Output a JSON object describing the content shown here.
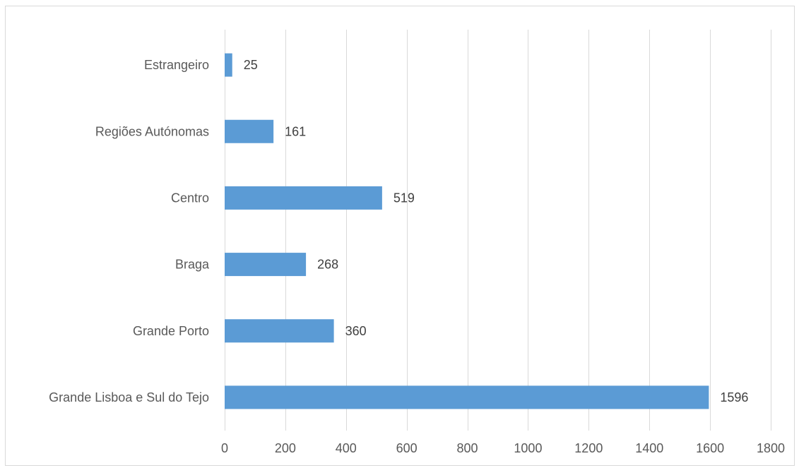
{
  "chart_data": {
    "type": "bar",
    "orientation": "horizontal",
    "title": "",
    "xlabel": "",
    "ylabel": "",
    "categories": [
      "Grande Lisboa e Sul do Tejo",
      "Grande Porto",
      "Braga",
      "Centro",
      "Regiões Autónomas",
      "Estrangeiro"
    ],
    "values": [
      1596,
      360,
      268,
      519,
      161,
      25
    ],
    "data_labels": [
      "1596",
      "360",
      "268",
      "519",
      "161",
      "25"
    ],
    "xlim": [
      0,
      1800
    ],
    "x_ticks": [
      "0",
      "200",
      "400",
      "600",
      "800",
      "1000",
      "1200",
      "1400",
      "1600",
      "1800"
    ],
    "grid": "vertical",
    "legend": "none",
    "bar_color": "#5b9bd5"
  }
}
